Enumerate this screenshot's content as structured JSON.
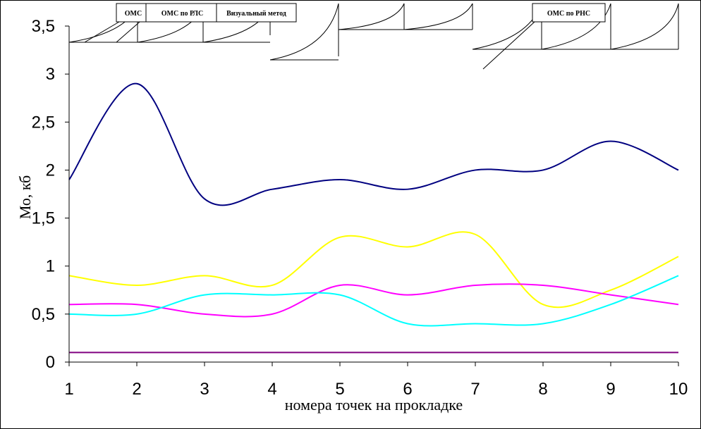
{
  "chart_data": {
    "type": "line",
    "title": "",
    "xlabel": "номера точек на прокладке",
    "ylabel": "Мо, кб",
    "x": [
      1,
      2,
      3,
      4,
      5,
      6,
      7,
      8,
      9,
      10
    ],
    "xlim": [
      1,
      10
    ],
    "ylim": [
      0,
      3.5
    ],
    "x_ticks": [
      "1",
      "2",
      "3",
      "4",
      "5",
      "6",
      "7",
      "8",
      "9",
      "10"
    ],
    "y_ticks": [
      "0",
      "0,5",
      "1",
      "1,5",
      "2",
      "2,5",
      "3",
      "3,5"
    ],
    "grid": false,
    "series": [
      {
        "color": "#000080",
        "values": [
          1.9,
          2.9,
          1.7,
          1.8,
          1.9,
          1.8,
          2.0,
          2.0,
          2.3,
          2.0
        ]
      },
      {
        "color": "#ffff00",
        "values": [
          0.9,
          0.8,
          0.9,
          0.8,
          1.3,
          1.2,
          1.33,
          0.6,
          0.75,
          1.1
        ]
      },
      {
        "color": "#ff00ff",
        "values": [
          0.6,
          0.6,
          0.5,
          0.5,
          0.8,
          0.7,
          0.8,
          0.8,
          0.7,
          0.6
        ]
      },
      {
        "color": "#00ffff",
        "values": [
          0.5,
          0.5,
          0.7,
          0.7,
          0.7,
          0.4,
          0.4,
          0.4,
          0.6,
          0.9
        ]
      },
      {
        "color": "#800080",
        "values": [
          0.1,
          0.1,
          0.1,
          0.1,
          0.1,
          0.1,
          0.1,
          0.1,
          0.1,
          0.1
        ]
      }
    ],
    "annotations": [
      {
        "label": "ОМС"
      },
      {
        "label": "ОМС по РЛС"
      },
      {
        "label": "Визуальный метод"
      },
      {
        "label": "ОМС по РНС"
      }
    ]
  }
}
